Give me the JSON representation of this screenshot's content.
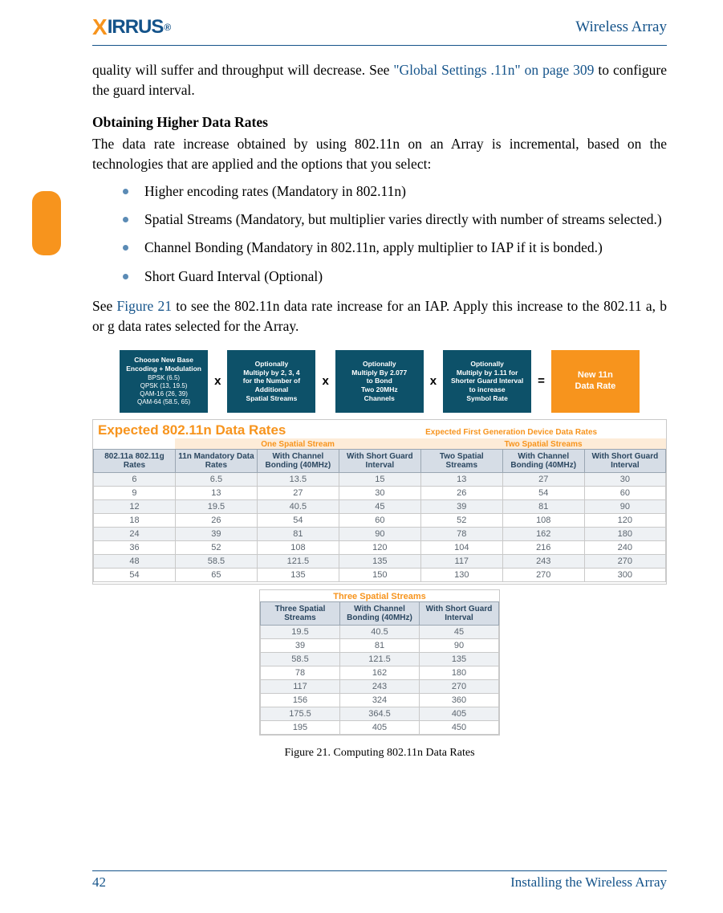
{
  "header": {
    "logo_text": "IRRUS",
    "doc_title": "Wireless Array"
  },
  "intro": {
    "line1_pre": "quality will suffer and throughput will decrease. See ",
    "line1_link": "\"Global Settings .11n\" on page 309",
    "line1_post": " to configure the guard interval."
  },
  "section": {
    "heading": "Obtaining Higher Data Rates",
    "para": "The data rate increase obtained by using 802.11n on an Array is incremental, based on the technologies that are applied and the options that you select:"
  },
  "bullets": [
    "Higher encoding rates (Mandatory in 802.11n)",
    "Spatial Streams (Mandatory, but multiplier varies directly with number of streams selected.)",
    "Channel Bonding (Mandatory in 802.11n, apply multiplier to IAP if it is bonded.)",
    "Short Guard Interval (Optional)"
  ],
  "after": {
    "pre": "See ",
    "link": "Figure 21",
    "post": " to see the 802.11n data rate increase for an IAP. Apply this increase to the 802.11 a, b or g data rates selected for the Array."
  },
  "formula": {
    "boxes": [
      {
        "title": "Choose New Base Encoding + Modulation",
        "sub": "BPSK  (6.5)\nQPSK (13, 19.5)\nQAM-16 (26, 39)\nQAM-64 (58.5, 65)",
        "color": "teal"
      },
      {
        "title": "Optionally\nMultiply by 2, 3, 4\nfor the Number of\nAdditional\nSpatial Streams",
        "sub": "",
        "color": "teal"
      },
      {
        "title": "Optionally\nMultiply By 2.077\nto Bond\nTwo 20MHz\nChannels",
        "sub": "",
        "color": "teal"
      },
      {
        "title": "Optionally\nMultiply by 1.11 for\nShorter Guard Interval\nto increase\nSymbol Rate",
        "sub": "",
        "color": "teal"
      },
      {
        "title": "New 11n\nData Rate",
        "sub": "",
        "color": "orange"
      }
    ],
    "ops": [
      "x",
      "x",
      "x",
      "="
    ]
  },
  "rates": {
    "main_title": "Expected 802.11n Data Rates",
    "sub_title": "Expected First Generation Device Data Rates",
    "group_one": "One Spatial Stream",
    "group_two": "Two Spatial Streams",
    "headers": [
      "802.11a 802.11g Rates",
      "11n Mandatory Data Rates",
      "With Channel Bonding (40MHz)",
      "With Short Guard Interval",
      "Two Spatial Streams",
      "With Channel Bonding (40MHz)",
      "With Short Guard Interval"
    ],
    "rows": [
      [
        "6",
        "6.5",
        "13.5",
        "15",
        "13",
        "27",
        "30"
      ],
      [
        "9",
        "13",
        "27",
        "30",
        "26",
        "54",
        "60"
      ],
      [
        "12",
        "19.5",
        "40.5",
        "45",
        "39",
        "81",
        "90"
      ],
      [
        "18",
        "26",
        "54",
        "60",
        "52",
        "108",
        "120"
      ],
      [
        "24",
        "39",
        "81",
        "90",
        "78",
        "162",
        "180"
      ],
      [
        "36",
        "52",
        "108",
        "120",
        "104",
        "216",
        "240"
      ],
      [
        "48",
        "58.5",
        "121.5",
        "135",
        "117",
        "243",
        "270"
      ],
      [
        "54",
        "65",
        "135",
        "150",
        "130",
        "270",
        "300"
      ]
    ],
    "table2_title": "Three Spatial Streams",
    "table2_headers": [
      "Three Spatial Streams",
      "With Channel Bonding (40MHz)",
      "With Short Guard Interval"
    ],
    "table2_rows": [
      [
        "19.5",
        "40.5",
        "45"
      ],
      [
        "39",
        "81",
        "90"
      ],
      [
        "58.5",
        "121.5",
        "135"
      ],
      [
        "78",
        "162",
        "180"
      ],
      [
        "117",
        "243",
        "270"
      ],
      [
        "156",
        "324",
        "360"
      ],
      [
        "175.5",
        "364.5",
        "405"
      ],
      [
        "195",
        "405",
        "450"
      ]
    ]
  },
  "caption": "Figure 21. Computing 802.11n Data Rates",
  "footer": {
    "page": "42",
    "title": "Installing the Wireless Array"
  }
}
